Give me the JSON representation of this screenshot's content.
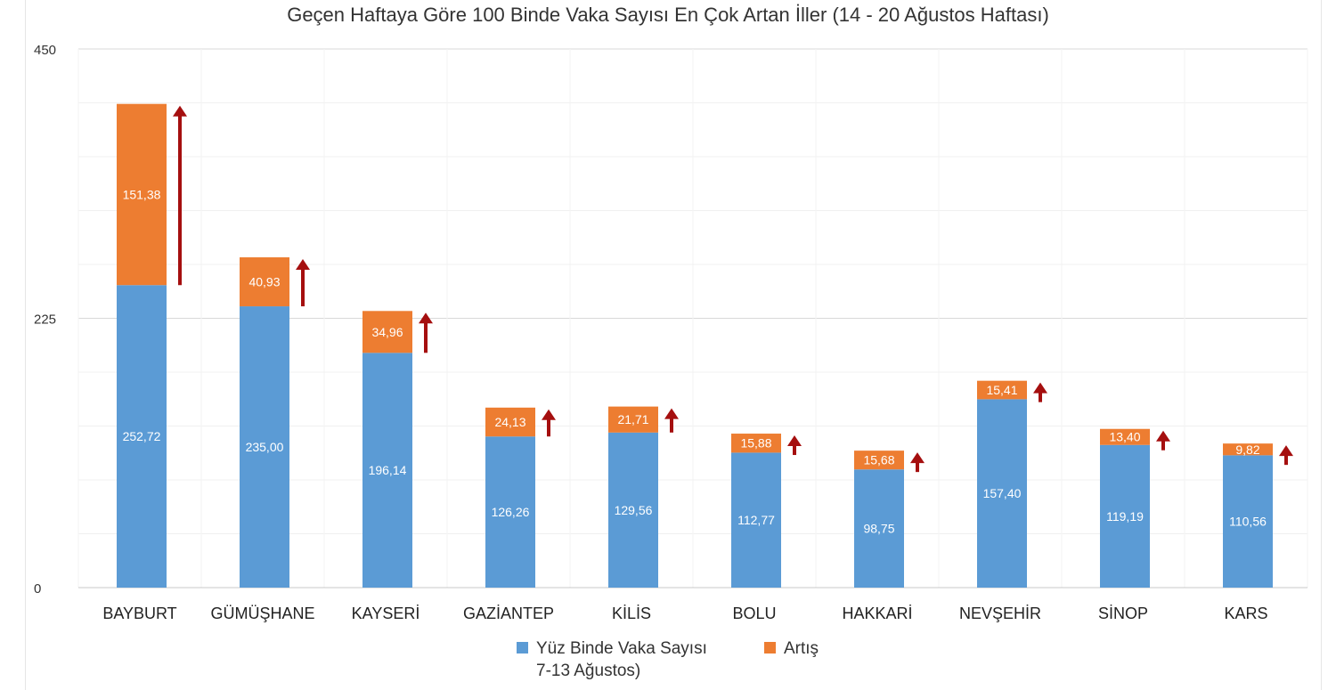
{
  "chart_data": {
    "type": "bar",
    "stacked": true,
    "title": "Geçen Haftaya Göre 100 Binde Vaka Sayısı En Çok Artan İller (14 - 20 Ağustos Haftası)",
    "categories": [
      "BAYBURT",
      "GÜMÜŞHANE",
      "KAYSERİ",
      "GAZİANTEP",
      "KİLİS",
      "BOLU",
      "HAKKARİ",
      "NEVŞEHİR",
      "SİNOP",
      "KARS"
    ],
    "series": [
      {
        "name": "Yüz Binde Vaka Sayısı 7-13 Ağustos)",
        "color": "#5b9bd5",
        "values": [
          252.72,
          235.0,
          196.14,
          126.26,
          129.56,
          112.77,
          98.75,
          157.4,
          119.19,
          110.56
        ],
        "labels": [
          "252,72",
          "235,00",
          "196,14",
          "126,26",
          "129,56",
          "112,77",
          "98,75",
          "157,40",
          "119,19",
          "110,56"
        ]
      },
      {
        "name": "Artış",
        "color": "#ed7d31",
        "values": [
          151.38,
          40.93,
          34.96,
          24.13,
          21.71,
          15.88,
          15.68,
          15.41,
          13.4,
          9.82
        ],
        "labels": [
          "151,38",
          "40,93",
          "34,96",
          "24,13",
          "21,71",
          "15,88",
          "15,68",
          "15,41",
          "13,40",
          "9,82"
        ]
      }
    ],
    "ylim": [
      0,
      450
    ],
    "yticks": [
      "0",
      "225",
      "450"
    ],
    "grid": true,
    "legend_position": "bottom",
    "annotation": "up-arrow beside each bar, color #a50f0f"
  },
  "legend": {
    "series1_line1": "Yüz Binde Vaka Sayısı",
    "series1_line2": "7-13 Ağustos)",
    "series2": "Artış"
  }
}
